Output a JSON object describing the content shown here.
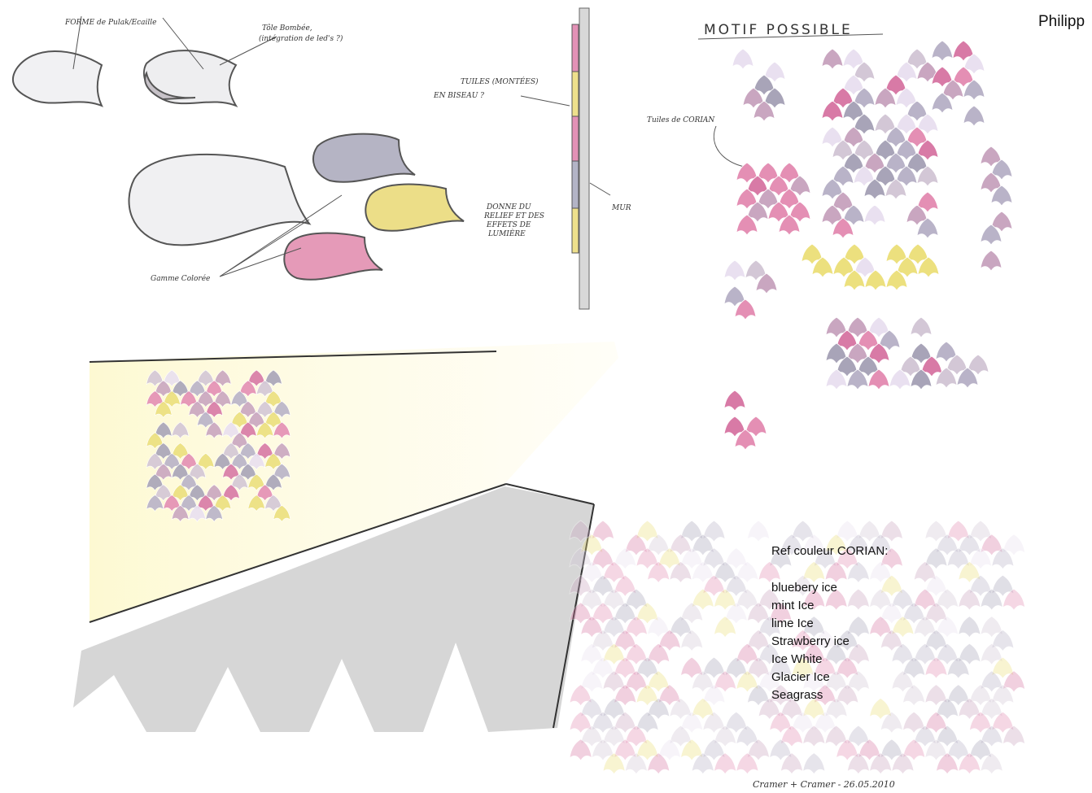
{
  "sketch_notes": {
    "scale_shape": "FORME de Pulak/Ecaille",
    "curved_sheet": "Tôle Bombée,",
    "led_question": "(intégration de led's ?)",
    "tiles_mounted": "TUILES (MONTÉES)",
    "bevel": "EN BISEAU ?",
    "relief_1": "DONNE DU",
    "relief_2": "RELIEF ET DES",
    "relief_3": "EFFETS DE",
    "relief_4": "LUMIÈRE",
    "wall": "MUR",
    "color_range": "Gamme Colorée",
    "corian_tiles": "Tuiles de CORIAN"
  },
  "motif_title": "MOTIF POSSIBLE",
  "author": "Philipp",
  "colors": {
    "title": "Ref couleur  CORIAN:",
    "items": [
      "bluebery ice",
      "mint Ice",
      "lime Ice",
      "Strawberry ice",
      "Ice White",
      "Glacier Ice",
      "Seagrass"
    ]
  },
  "signature": "Cramer + Cramer - 26.05.2010"
}
